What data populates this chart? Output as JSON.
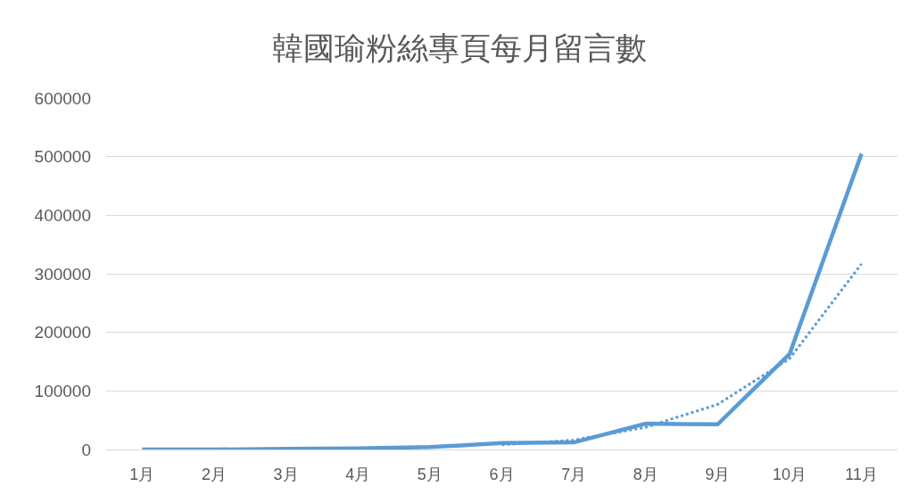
{
  "chart_data": {
    "type": "line",
    "title": "韓國瑜粉絲專頁每月留言數",
    "categories": [
      "1月",
      "2月",
      "3月",
      "4月",
      "5月",
      "6月",
      "7月",
      "8月",
      "9月",
      "10月",
      "11月"
    ],
    "series": [
      {
        "color": "#5b9bd5",
        "line_style": "solid",
        "values": [
          0,
          0,
          1000,
          2000,
          4000,
          11000,
          12000,
          44000,
          43000,
          163000,
          505000
        ]
      },
      {
        "color": "#5b9bd5",
        "line_style": "dotted",
        "values": [
          null,
          null,
          null,
          null,
          null,
          8000,
          16000,
          38000,
          77000,
          155000,
          317000
        ]
      }
    ],
    "ylim": [
      0,
      600000
    ],
    "yticks": [
      0,
      100000,
      200000,
      300000,
      400000,
      500000,
      600000
    ],
    "grid": "y"
  }
}
